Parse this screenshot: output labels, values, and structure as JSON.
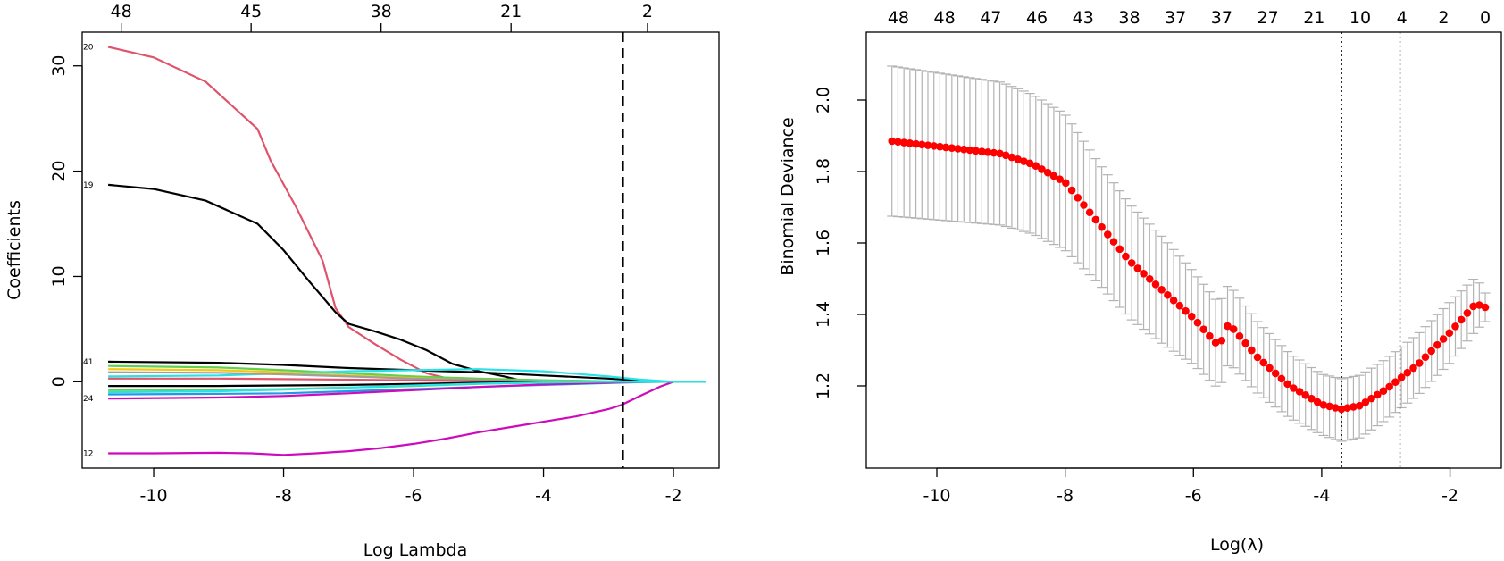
{
  "chart_data": [
    {
      "type": "line",
      "xlabel": "Log Lambda",
      "ylabel": "Coefficients",
      "xlim": [
        -11.1,
        -1.3
      ],
      "ylim": [
        -8.2,
        33.2
      ],
      "x_ticks": [
        -10,
        -8,
        -6,
        -4,
        -2
      ],
      "y_ticks": [
        0,
        10,
        20,
        30
      ],
      "top_axis": {
        "ticks": [
          -10.5,
          -8.5,
          -6.5,
          -4.5,
          -2.4
        ],
        "labels": [
          "48",
          "45",
          "38",
          "21",
          "2"
        ]
      },
      "vline": {
        "x": -2.78,
        "style": "dashed"
      },
      "series": [
        {
          "label": "20",
          "color": "#df536b",
          "x": [
            -10.7,
            -10,
            -9.2,
            -8.4,
            -8.2,
            -7.8,
            -7.4,
            -7.2,
            -7.0,
            -6.6,
            -6.2,
            -5.8,
            -5.4,
            -5.0,
            -4.4,
            -3.5,
            -2.5
          ],
          "y": [
            31.8,
            30.8,
            28.5,
            24.0,
            21.0,
            16.5,
            11.5,
            7.0,
            5.2,
            3.6,
            2.1,
            0.8,
            0.2,
            0.0,
            0.0,
            0.0,
            0.0
          ]
        },
        {
          "label": "19",
          "color": "#000000",
          "x": [
            -10.7,
            -10,
            -9.2,
            -8.4,
            -8.0,
            -7.6,
            -7.2,
            -7.0,
            -6.6,
            -6.2,
            -5.8,
            -5.4,
            -5.0,
            -4.6,
            -4.3,
            -4.0,
            -3.0,
            -2.0
          ],
          "y": [
            18.7,
            18.3,
            17.2,
            15.0,
            12.5,
            9.5,
            6.6,
            5.5,
            4.8,
            4.0,
            3.0,
            1.7,
            1.0,
            0.5,
            0.05,
            0.0,
            0.0,
            0.0
          ]
        },
        {
          "label": "12",
          "color": "#cd0bbc",
          "x": [
            -10.7,
            -10,
            -9,
            -8.5,
            -8.0,
            -7.5,
            -7.0,
            -6.5,
            -6.0,
            -5.5,
            -5.0,
            -4.5,
            -4.0,
            -3.5,
            -3.0,
            -2.8,
            -2.5,
            -2.2,
            -2.0,
            -1.8,
            -1.5
          ],
          "y": [
            -6.8,
            -6.8,
            -6.75,
            -6.8,
            -6.95,
            -6.8,
            -6.6,
            -6.3,
            -5.9,
            -5.4,
            -4.8,
            -4.3,
            -3.8,
            -3.3,
            -2.6,
            -2.2,
            -1.3,
            -0.45,
            0.0,
            0.0,
            0.0
          ]
        },
        {
          "label": "41",
          "color": "#000000",
          "x": [
            -10.7,
            -9,
            -8,
            -7,
            -6,
            -5,
            -4,
            -3,
            -2.5,
            -2.0,
            -1.5
          ],
          "y": [
            1.9,
            1.8,
            1.6,
            1.3,
            1.1,
            0.9,
            0.6,
            0.3,
            0.1,
            0.0,
            0.0
          ]
        },
        {
          "label": "",
          "color": "#61d04f",
          "x": [
            -10.7,
            -9,
            -8,
            -7,
            -6,
            -5,
            -4,
            -3,
            -2.5,
            -2.0,
            -1.5
          ],
          "y": [
            1.5,
            1.35,
            1.1,
            0.8,
            0.5,
            0.3,
            0.15,
            0.05,
            0.0,
            0.0,
            0.0
          ]
        },
        {
          "label": "",
          "color": "#28e2e5",
          "x": [
            -10.7,
            -9,
            -8,
            -7,
            -6,
            -5,
            -4,
            -3,
            -2.5,
            -2.0,
            -1.5
          ],
          "y": [
            0.5,
            0.6,
            0.8,
            1.0,
            1.1,
            1.2,
            1.0,
            0.5,
            0.2,
            0.0,
            0.0
          ]
        },
        {
          "label": "",
          "color": "#f5c710",
          "x": [
            -10.7,
            -9,
            -8,
            -7,
            -6,
            -5,
            -4,
            -3,
            -2.5,
            -2.0,
            -1.5
          ],
          "y": [
            1.2,
            1.1,
            0.9,
            0.6,
            0.35,
            0.15,
            0.05,
            0.0,
            0.0,
            0.0,
            0.0
          ]
        },
        {
          "label": "",
          "color": "#9e9e9e",
          "x": [
            -10.7,
            -9,
            -8,
            -7,
            -6,
            -5,
            -4,
            -3,
            -2.5,
            -2.0,
            -1.5
          ],
          "y": [
            0.9,
            0.85,
            0.7,
            0.5,
            0.3,
            0.15,
            0.05,
            0.0,
            0.0,
            0.0,
            0.0
          ]
        },
        {
          "label": "",
          "color": "#2297e6",
          "x": [
            -10.7,
            -9,
            -8,
            -7,
            -6,
            -5,
            -4,
            -3,
            -2.5,
            -2.0,
            -1.5
          ],
          "y": [
            -1.2,
            -1.15,
            -1.1,
            -0.9,
            -0.7,
            -0.5,
            -0.3,
            -0.12,
            -0.04,
            0.0,
            0.0
          ]
        },
        {
          "label": "24",
          "color": "#cd0bbc",
          "x": [
            -10.7,
            -9,
            -8,
            -7,
            -6,
            -5,
            -4,
            -3,
            -2.5,
            -2.0,
            -1.5
          ],
          "y": [
            -1.6,
            -1.5,
            -1.35,
            -1.1,
            -0.8,
            -0.5,
            -0.25,
            -0.08,
            0.0,
            0.0,
            0.0
          ]
        },
        {
          "label": "",
          "color": "#df536b",
          "x": [
            -10.7,
            -9,
            -8,
            -7,
            -6,
            -5,
            -4,
            -3,
            -2.5,
            -2.0,
            -1.5
          ],
          "y": [
            0.3,
            0.3,
            0.25,
            0.2,
            0.12,
            0.05,
            0.0,
            0.0,
            0.0,
            0.0,
            0.0
          ]
        },
        {
          "label": "",
          "color": "#000000",
          "x": [
            -10.7,
            -9,
            -8,
            -7,
            -6,
            -5,
            -4,
            -3,
            -2.5,
            -2.0,
            -1.5
          ],
          "y": [
            -0.4,
            -0.4,
            -0.35,
            -0.3,
            -0.2,
            -0.1,
            -0.03,
            0.0,
            0.0,
            0.0,
            0.0
          ]
        },
        {
          "label": "",
          "color": "#61d04f",
          "x": [
            -10.7,
            -9,
            -8,
            -7,
            -6,
            -5,
            -4,
            -3,
            -2.5,
            -2.0,
            -1.5
          ],
          "y": [
            -0.8,
            -0.75,
            -0.7,
            -0.55,
            -0.4,
            -0.2,
            -0.08,
            0.0,
            0.0,
            0.0,
            0.0
          ]
        },
        {
          "label": "",
          "color": "#28e2e5",
          "x": [
            -10.7,
            -9,
            -8,
            -7,
            -6,
            -5,
            -4,
            -3,
            -2.5,
            -2.0,
            -1.5
          ],
          "y": [
            -1.0,
            -0.9,
            -0.75,
            -0.55,
            -0.35,
            -0.18,
            -0.06,
            0.0,
            0.0,
            0.0,
            0.0
          ]
        }
      ]
    },
    {
      "type": "scatter",
      "xlabel": "Log(λ)",
      "ylabel": "Binomial Deviance",
      "xlim": [
        -11.1,
        -1.2
      ],
      "ylim": [
        0.97,
        2.19
      ],
      "x_ticks": [
        -10,
        -8,
        -6,
        -4,
        -2
      ],
      "y_ticks": [
        1.2,
        1.4,
        1.6,
        1.8,
        2.0
      ],
      "y_tick_labels": [
        "1.2",
        "1.4",
        "1.6",
        "1.8",
        "2.0"
      ],
      "top_axis": {
        "ticks": [
          -10.6,
          -9.88,
          -9.16,
          -8.44,
          -7.72,
          -7.0,
          -6.28,
          -5.56,
          -4.84,
          -4.12,
          -3.4,
          -2.75,
          -2.1,
          -1.45
        ],
        "labels": [
          "48",
          "48",
          "47",
          "46",
          "43",
          "38",
          "37",
          "37",
          "27",
          "21",
          "10",
          "4",
          "2",
          "0"
        ]
      },
      "vlines": [
        {
          "x": -3.69,
          "style": "dotted"
        },
        {
          "x": -2.78,
          "style": "dotted"
        }
      ],
      "point_color": "#ff0000",
      "errorbar_color": "#b3b3b3",
      "curve": {
        "x": [
          -10.7,
          -9.0,
          -8.5,
          -8.0,
          -7.5,
          -7.0,
          -6.5,
          -6.0,
          -5.6,
          -5.45,
          -5.0,
          -4.5,
          -4.0,
          -3.7,
          -3.4,
          -3.0,
          -2.5,
          -2.0,
          -1.6,
          -1.45
        ],
        "y": [
          1.885,
          1.85,
          1.82,
          1.77,
          1.66,
          1.55,
          1.47,
          1.39,
          1.31,
          1.375,
          1.28,
          1.2,
          1.148,
          1.135,
          1.145,
          1.19,
          1.26,
          1.35,
          1.43,
          1.42
        ],
        "se_upper": [
          0.21,
          0.2,
          0.195,
          0.19,
          0.17,
          0.16,
          0.15,
          0.13,
          0.12,
          0.11,
          0.1,
          0.09,
          0.085,
          0.085,
          0.085,
          0.085,
          0.085,
          0.085,
          0.075,
          0.04
        ],
        "se_lower": [
          0.21,
          0.2,
          0.195,
          0.19,
          0.17,
          0.16,
          0.15,
          0.13,
          0.12,
          0.11,
          0.1,
          0.09,
          0.085,
          0.09,
          0.09,
          0.085,
          0.085,
          0.085,
          0.075,
          0.04
        ]
      }
    }
  ]
}
